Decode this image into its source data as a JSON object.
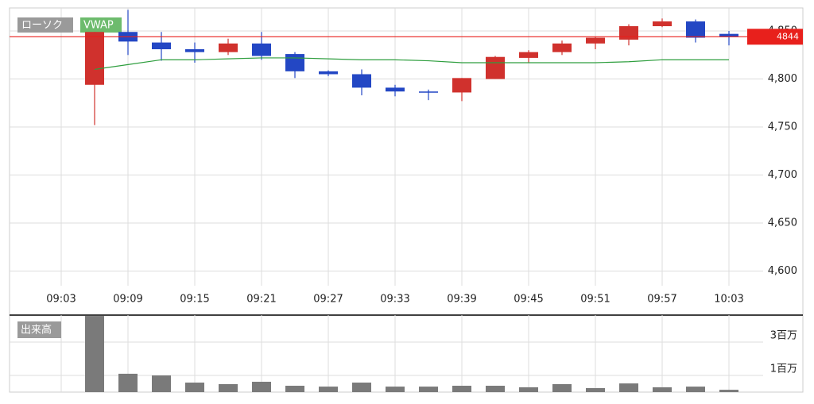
{
  "chart_data": [
    {
      "type": "candlestick",
      "categories": [
        "09:03",
        null,
        "09:09",
        null,
        "09:15",
        null,
        "09:21",
        null,
        "09:27",
        null,
        "09:33",
        null,
        "09:39",
        null,
        "09:45",
        null,
        "09:51",
        null,
        "09:57",
        null,
        "10:03"
      ],
      "series": [
        {
          "name": "ローソク",
          "up_color": "#d0312d",
          "down_color": "#2347c4",
          "open": [
            null,
            4794,
            4849,
            4838,
            4831,
            4828,
            4837,
            4826,
            4808,
            4805,
            4791,
            4787,
            4786,
            4800,
            4822,
            4828,
            4837,
            4841,
            4855,
            4860,
            4847
          ],
          "high": [
            null,
            4849,
            4872,
            4849,
            4838,
            4842,
            4849,
            4828,
            4809,
            4810,
            4794,
            4789,
            4801,
            4824,
            4830,
            4840,
            4844,
            4857,
            4863,
            4862,
            4850
          ],
          "low": [
            null,
            4752,
            4825,
            4819,
            4817,
            4825,
            4820,
            4801,
            4803,
            4783,
            4782,
            4778,
            4777,
            4800,
            4817,
            4825,
            4831,
            4835,
            4854,
            4838,
            4835
          ],
          "close": [
            null,
            4849,
            4839,
            4831,
            4828,
            4837,
            4824,
            4808,
            4805,
            4791,
            4787,
            4786,
            4801,
            4823,
            4828,
            4837,
            4843,
            4855,
            4860,
            4843,
            4844
          ]
        },
        {
          "name": "VWAP",
          "color": "#2e9e3e",
          "values": [
            null,
            4810,
            4815,
            4820,
            4820,
            4821,
            4822,
            4822,
            4821,
            4820,
            4820,
            4819,
            4817,
            4817,
            4817,
            4817,
            4817,
            4818,
            4820,
            4820,
            4820
          ]
        }
      ],
      "current_price": {
        "value": 4844,
        "color": "#e8201c"
      },
      "ylim": [
        4593,
        4874
      ],
      "yticks": [
        {
          "value": 4600,
          "label": "4,600"
        },
        {
          "value": 4650,
          "label": "4,650"
        },
        {
          "value": 4700,
          "label": "4,700"
        },
        {
          "value": 4750,
          "label": "4,750"
        },
        {
          "value": 4800,
          "label": "4,800"
        },
        {
          "value": 4850,
          "label": "4,850"
        }
      ],
      "grid": true
    },
    {
      "type": "bar",
      "name": "出来高",
      "color": "#7a7a7a",
      "values": [
        null,
        4570000,
        1100000,
        1000000,
        570000,
        480000,
        620000,
        380000,
        330000,
        570000,
        330000,
        330000,
        380000,
        380000,
        290000,
        480000,
        240000,
        520000,
        290000,
        330000,
        140000
      ],
      "ylim": [
        0,
        4620000
      ],
      "yticks": [
        {
          "value": 1000000,
          "label": "1百万"
        },
        {
          "value": 3000000,
          "label": "3百万"
        }
      ],
      "grid": true
    }
  ]
}
